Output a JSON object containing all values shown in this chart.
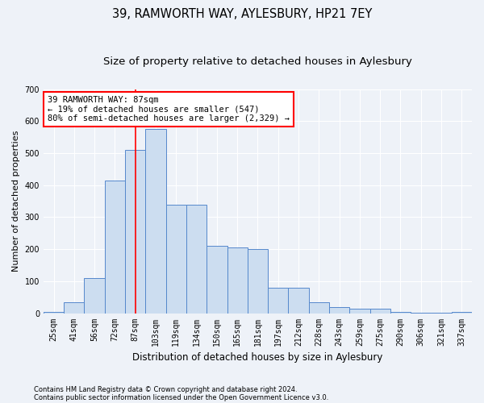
{
  "title1": "39, RAMWORTH WAY, AYLESBURY, HP21 7EY",
  "title2": "Size of property relative to detached houses in Aylesbury",
  "xlabel": "Distribution of detached houses by size in Aylesbury",
  "ylabel": "Number of detached properties",
  "categories": [
    "25sqm",
    "41sqm",
    "56sqm",
    "72sqm",
    "87sqm",
    "103sqm",
    "119sqm",
    "134sqm",
    "150sqm",
    "165sqm",
    "181sqm",
    "197sqm",
    "212sqm",
    "228sqm",
    "243sqm",
    "259sqm",
    "275sqm",
    "290sqm",
    "306sqm",
    "321sqm",
    "337sqm"
  ],
  "values": [
    5,
    35,
    110,
    415,
    510,
    575,
    340,
    340,
    210,
    205,
    200,
    80,
    80,
    35,
    20,
    15,
    13,
    3,
    1,
    2,
    5
  ],
  "bar_color": "#ccddf0",
  "bar_edge_color": "#5588cc",
  "vline_index": 4,
  "annotation_text": "39 RAMWORTH WAY: 87sqm\n← 19% of detached houses are smaller (547)\n80% of semi-detached houses are larger (2,329) →",
  "annotation_box_facecolor": "white",
  "annotation_box_edgecolor": "red",
  "vline_color": "red",
  "ylim": [
    0,
    700
  ],
  "yticks": [
    0,
    100,
    200,
    300,
    400,
    500,
    600,
    700
  ],
  "footer1": "Contains HM Land Registry data © Crown copyright and database right 2024.",
  "footer2": "Contains public sector information licensed under the Open Government Licence v3.0.",
  "bg_color": "#eef2f8",
  "grid_color": "#ffffff",
  "title1_fontsize": 10.5,
  "title2_fontsize": 9.5,
  "ylabel_fontsize": 8,
  "xlabel_fontsize": 8.5,
  "tick_fontsize": 7,
  "annot_fontsize": 7.5,
  "footer_fontsize": 6.0
}
